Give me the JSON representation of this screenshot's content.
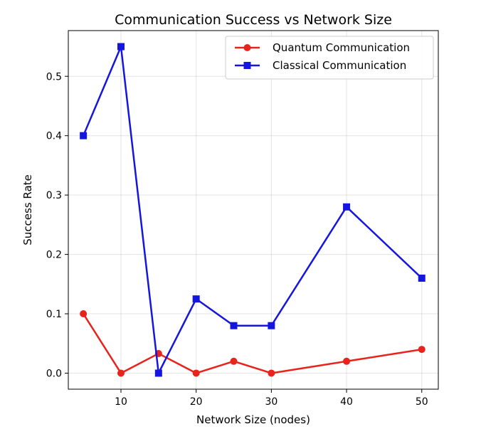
{
  "chart_data": {
    "type": "line",
    "title": "Communication Success vs Network Size",
    "xlabel": "Network Size (nodes)",
    "ylabel": "Success Rate",
    "xlim": [
      3,
      52.2
    ],
    "ylim": [
      -0.027,
      0.577
    ],
    "xticks": [
      10,
      20,
      30,
      40,
      50
    ],
    "yticks": [
      0.0,
      0.1,
      0.2,
      0.3,
      0.4,
      0.5
    ],
    "xtick_labels": [
      "10",
      "20",
      "30",
      "40",
      "50"
    ],
    "ytick_labels": [
      "0.0",
      "0.1",
      "0.2",
      "0.3",
      "0.4",
      "0.5"
    ],
    "grid": true,
    "legend_position": "top-right",
    "x": [
      5,
      10,
      15,
      20,
      25,
      30,
      40,
      50
    ],
    "series": [
      {
        "name": "Quantum Communication",
        "color": "#e8231c",
        "marker": "circle",
        "values": [
          0.1,
          0.0,
          0.033,
          0.0,
          0.02,
          0.0,
          0.02,
          0.04
        ]
      },
      {
        "name": "Classical Communication",
        "color": "#1515e0",
        "marker": "square",
        "values": [
          0.4,
          0.55,
          0.0,
          0.125,
          0.08,
          0.08,
          0.28,
          0.16
        ]
      }
    ]
  }
}
